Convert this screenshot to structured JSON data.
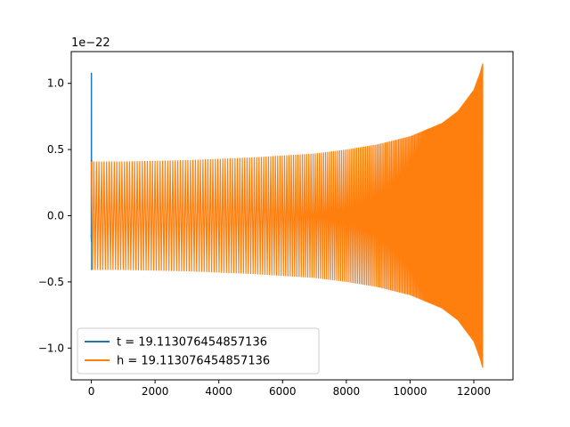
{
  "chart_data": {
    "type": "line",
    "title": "",
    "xlabel": "",
    "ylabel": "",
    "y_offset_label": "1e−22",
    "xlim": [
      -630,
      13230
    ],
    "ylim": [
      -1.24,
      1.24
    ],
    "x_ticks": [
      0,
      2000,
      4000,
      6000,
      8000,
      10000,
      12000
    ],
    "x_tick_labels": [
      "0",
      "2000",
      "4000",
      "6000",
      "8000",
      "10000",
      "12000"
    ],
    "y_ticks": [
      -1.0,
      -0.5,
      0.0,
      0.5,
      1.0
    ],
    "y_tick_labels": [
      "−1.0",
      "−0.5",
      "0.0",
      "0.5",
      "1.0"
    ],
    "grid": false,
    "legend_position": "lower-left",
    "series": [
      {
        "name": "t = 19.113076454857136",
        "color": "#1f77b4",
        "x": [
          0,
          3,
          6,
          9,
          12
        ],
        "y": [
          -0.18,
          1.08,
          -0.2,
          0.42,
          -0.41
        ]
      },
      {
        "name": "h = 19.113076454857136",
        "color": "#ff7f0e",
        "x": [
          0,
          1000,
          2000,
          3000,
          4000,
          5000,
          6000,
          7000,
          8000,
          9000,
          10000,
          11000,
          11500,
          12000,
          12200,
          12280
        ],
        "envelope": [
          0.41,
          0.41,
          0.415,
          0.42,
          0.43,
          0.44,
          0.455,
          0.47,
          0.5,
          0.54,
          0.6,
          0.7,
          0.79,
          0.95,
          1.08,
          1.15
        ]
      }
    ]
  }
}
